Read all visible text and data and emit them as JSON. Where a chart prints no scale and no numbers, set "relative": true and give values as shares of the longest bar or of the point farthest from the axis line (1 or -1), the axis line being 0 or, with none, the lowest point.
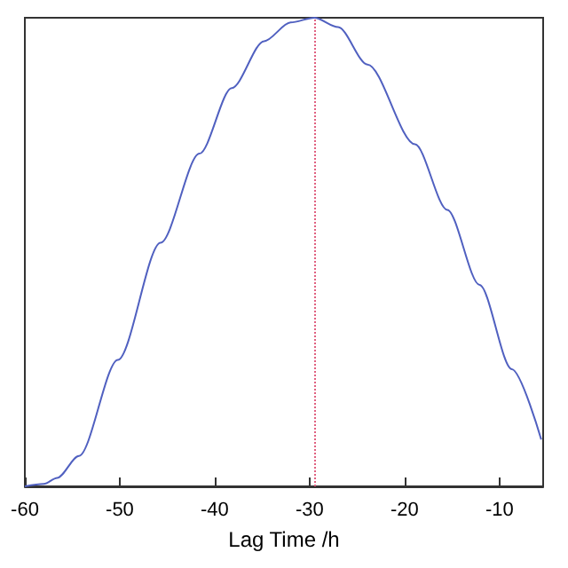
{
  "chart_data": {
    "type": "line",
    "xlabel": "Lag Time /h",
    "relative": true,
    "xlim": [
      -60,
      -5.4
    ],
    "xticks": [
      -60,
      -50,
      -40,
      -30,
      -20,
      -10
    ],
    "grid": false,
    "marker": "none",
    "line_style": "solid",
    "series": [
      {
        "color": "#5060c0",
        "x": [
          -60,
          -58,
          -56.6,
          -54.3,
          -50.2,
          -45.7,
          -41.6,
          -38.2,
          -34.8,
          -32,
          -29.5,
          -27,
          -23.9,
          -18.9,
          -15.5,
          -12.1,
          -8.7,
          -5.6
        ],
        "values": [
          0,
          0.005,
          0.018,
          0.065,
          0.27,
          0.52,
          0.71,
          0.85,
          0.95,
          0.99,
          1,
          0.98,
          0.9,
          0.73,
          0.59,
          0.43,
          0.25,
          0.1
        ]
      }
    ],
    "ref_lines": [
      {
        "axis": "x",
        "value": -29.5,
        "color": "#e06080",
        "line_style": "dotted"
      }
    ]
  }
}
